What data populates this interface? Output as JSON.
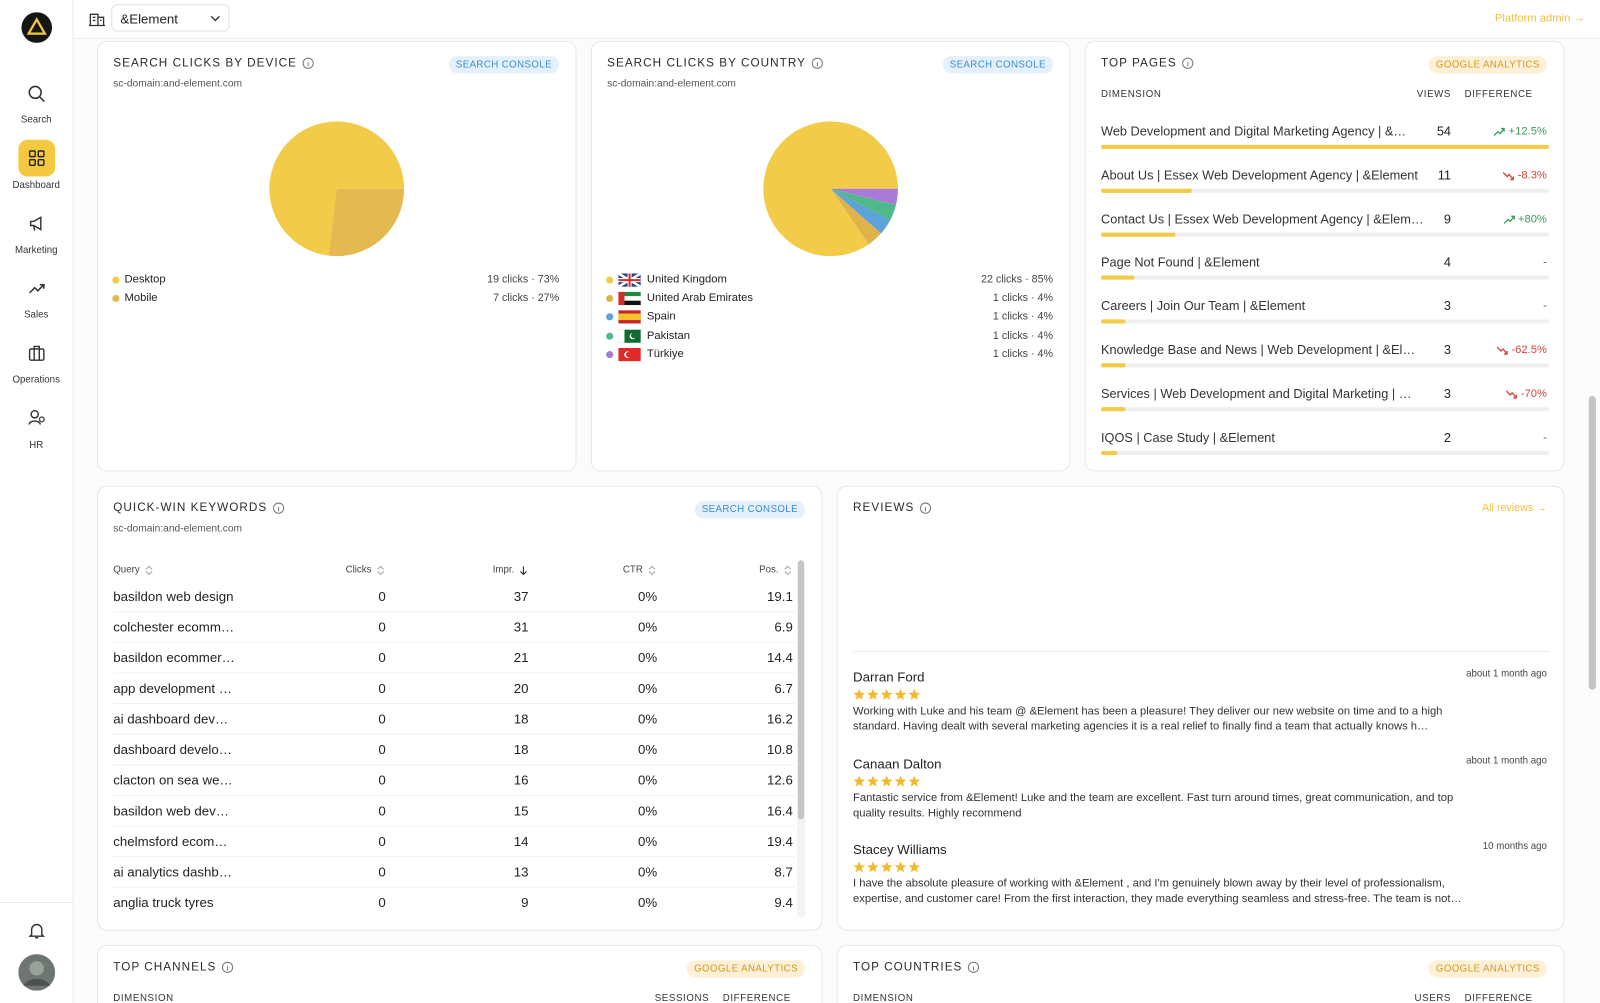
{
  "topbar": {
    "org": "&Element",
    "admin_link": "Platform admin →"
  },
  "sidebar": {
    "nav": [
      "Search",
      "Dashboard",
      "Marketing",
      "Sales",
      "Operations",
      "HR"
    ]
  },
  "chart_data": [
    {
      "type": "pie",
      "title": "SEARCH CLICKS BY DEVICE",
      "subtitle": "sc-domain:and-element.com",
      "badge": "SEARCH CONSOLE",
      "categories": [
        "Desktop",
        "Mobile"
      ],
      "values": [
        19,
        7
      ],
      "value_labels": [
        "19 clicks · 73%",
        "7 clicks · 27%"
      ],
      "colors": [
        "#f2cb48",
        "#e3b950"
      ]
    },
    {
      "type": "pie",
      "title": "SEARCH CLICKS BY COUNTRY",
      "subtitle": "sc-domain:and-element.com",
      "badge": "SEARCH CONSOLE",
      "categories": [
        "United Kingdom",
        "United Arab Emirates",
        "Spain",
        "Pakistan",
        "Türkiye"
      ],
      "values": [
        22,
        1,
        1,
        1,
        1
      ],
      "value_labels": [
        "22 clicks · 85%",
        "1 clicks · 4%",
        "1 clicks · 4%",
        "1 clicks · 4%",
        "1 clicks · 4%"
      ],
      "colors": [
        "#f2cb48",
        "#e0b24a",
        "#5ba3d9",
        "#4fb98a",
        "#a97bd6"
      ]
    }
  ],
  "top_pages": {
    "title": "TOP PAGES",
    "badge": "GOOGLE ANALYTICS",
    "columns": [
      "DIMENSION",
      "VIEWS",
      "DIFFERENCE"
    ],
    "rows": [
      [
        "Web Development and Digital Marketing Agency | &…",
        54,
        "+12.5%"
      ],
      [
        "About Us | Essex Web Development Agency | &Element",
        11,
        "-8.3%"
      ],
      [
        "Contact Us | Essex Web Development Agency | &Elem…",
        9,
        "+80%"
      ],
      [
        "Page Not Found | &Element",
        4,
        "-"
      ],
      [
        "Careers | Join Our Team | &Element",
        3,
        "-"
      ],
      [
        "Knowledge Base and News | Web Development | &El…",
        3,
        "-62.5%"
      ],
      [
        "Services | Web Development and Digital Marketing | …",
        3,
        "-70%"
      ],
      [
        "IQOS | Case Study | &Element",
        2,
        "-"
      ]
    ]
  },
  "quick_win_keywords": {
    "title": "QUICK-WIN KEYWORDS",
    "subtitle": "sc-domain:and-element.com",
    "badge": "SEARCH CONSOLE",
    "columns": [
      "Query",
      "Clicks",
      "Impr.",
      "CTR",
      "Pos."
    ],
    "rows": [
      [
        "basildon web design",
        0,
        37,
        "0%",
        19.1
      ],
      [
        "colchester ecomm…",
        0,
        31,
        "0%",
        6.9
      ],
      [
        "basildon ecommer…",
        0,
        21,
        "0%",
        14.4
      ],
      [
        "app development …",
        0,
        20,
        "0%",
        6.7
      ],
      [
        "ai dashboard dev…",
        0,
        18,
        "0%",
        16.2
      ],
      [
        "dashboard develo…",
        0,
        18,
        "0%",
        10.8
      ],
      [
        "clacton on sea we…",
        0,
        16,
        "0%",
        12.6
      ],
      [
        "basildon web dev…",
        0,
        15,
        "0%",
        16.4
      ],
      [
        "chelmsford ecom…",
        0,
        14,
        "0%",
        19.4
      ],
      [
        "ai analytics dashb…",
        0,
        13,
        "0%",
        8.7
      ],
      [
        "anglia truck tyres",
        0,
        9,
        "0%",
        9.4
      ]
    ]
  },
  "reviews": {
    "title": "REVIEWS",
    "link": "All reviews →",
    "items": [
      {
        "name": "Darran Ford",
        "rating": 5,
        "time": "about 1 month ago",
        "text": "Working with Luke and his team @ &Element has been a pleasure! They deliver our new website on time and to a high standard. Having dealt with several marketing agencies it is a real relief to finally find a team that actually knows h…"
      },
      {
        "name": "Canaan Dalton",
        "rating": 5,
        "time": "about 1 month ago",
        "text": "Fantastic service from &Element! Luke and the team are excellent. Fast turn around times, great communication, and top quality results. Highly recommend"
      },
      {
        "name": "Stacey Williams",
        "rating": 5,
        "time": "10 months ago",
        "text": "I have the absolute pleasure of working with &Element , and I'm genuinely blown away by their level of professionalism, expertise, and customer care! From the first interaction, they made everything seamless and stress-free. The team is not…"
      }
    ]
  },
  "top_channels": {
    "title": "TOP CHANNELS",
    "badge": "GOOGLE ANALYTICS",
    "columns": [
      "DIMENSION",
      "SESSIONS",
      "DIFFERENCE"
    ]
  },
  "top_countries": {
    "title": "TOP COUNTRIES",
    "badge": "GOOGLE ANALYTICS",
    "columns": [
      "DIMENSION",
      "USERS",
      "DIFFERENCE"
    ]
  }
}
